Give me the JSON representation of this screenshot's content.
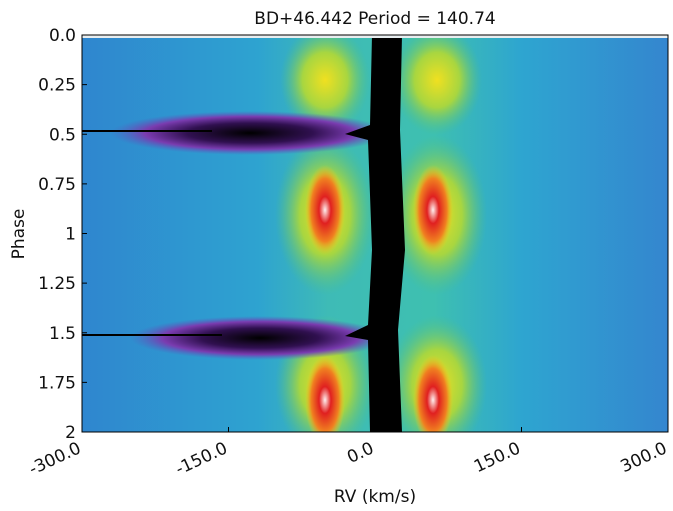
{
  "chart_data": {
    "type": "heatmap",
    "title": "BD+46.442 Period = 140.74",
    "xlabel": "RV (km/s)",
    "ylabel": "Phase",
    "xlim": [
      -300,
      300
    ],
    "ylim": [
      2,
      0
    ],
    "xticks": [
      {
        "value": -300,
        "label": "-300.0"
      },
      {
        "value": -150,
        "label": "-150.0"
      },
      {
        "value": 0,
        "label": "0.0"
      },
      {
        "value": 150,
        "label": "150.0"
      },
      {
        "value": 300,
        "label": "300.0"
      }
    ],
    "yticks": [
      {
        "value": 0,
        "label": "0.0"
      },
      0.25,
      0.5,
      0.75,
      1,
      1.25,
      1.5,
      1.75,
      2
    ]
  }
}
